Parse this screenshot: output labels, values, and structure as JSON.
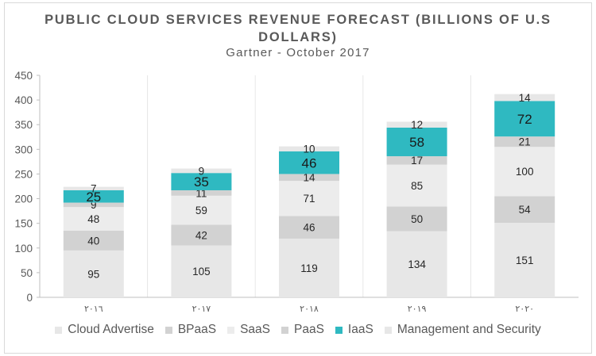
{
  "chart_data": {
    "type": "bar",
    "stacked": true,
    "title": "PUBLIC CLOUD SERVICES REVENUE FORECAST (BILLIONS OF U.S DOLLARS)",
    "title_lines": [
      "PUBLIC CLOUD SERVICES REVENUE FORECAST (BILLIONS OF U.S",
      "DOLLARS)"
    ],
    "subtitle": "Gartner - October 2017",
    "categories": [
      "٢٠١٦",
      "٢٠١٧",
      "٢٠١٨",
      "٢٠١٩",
      "٢٠٢٠"
    ],
    "ylim": [
      0,
      450
    ],
    "yticks": [
      0,
      50,
      100,
      150,
      200,
      250,
      300,
      350,
      400,
      450
    ],
    "grid": "vertical-category-dividers",
    "legend_position": "bottom",
    "series": [
      {
        "name": "Cloud Advertise",
        "values": [
          95,
          105,
          119,
          134,
          151
        ],
        "color": "#e7e7e7",
        "label_color": "#262626"
      },
      {
        "name": "BPaaS",
        "values": [
          40,
          42,
          46,
          50,
          54
        ],
        "color": "#d2d2d2",
        "label_color": "#262626"
      },
      {
        "name": "SaaS",
        "values": [
          48,
          59,
          71,
          85,
          100
        ],
        "color": "#ececec",
        "label_color": "#262626"
      },
      {
        "name": "PaaS",
        "values": [
          9,
          11,
          14,
          17,
          21
        ],
        "color": "#d2d2d2",
        "label_color": "#262626"
      },
      {
        "name": "IaaS",
        "values": [
          25,
          35,
          46,
          58,
          72
        ],
        "color": "#2fb9c1",
        "label_color": "#1a1a1a",
        "label_large": true
      },
      {
        "name": "Management and Security",
        "values": [
          7,
          9,
          10,
          12,
          14
        ],
        "color": "#e7e7e7",
        "label_color": "#262626"
      }
    ]
  }
}
